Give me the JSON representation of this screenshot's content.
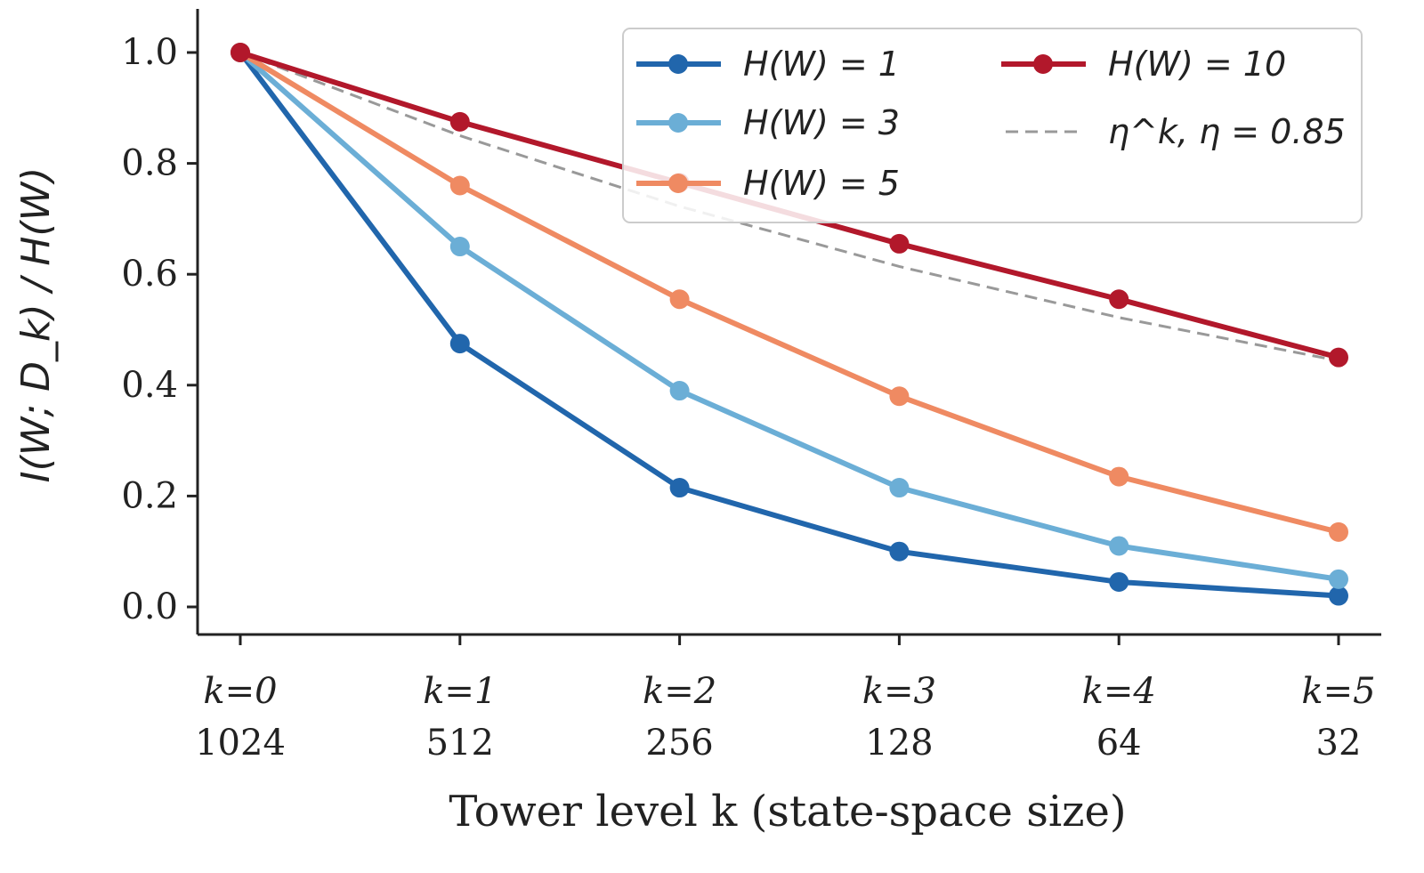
{
  "chart_data": {
    "type": "line",
    "title": "",
    "xlabel": "Tower level k  (state-space size)",
    "ylabel": "I(W; D_k) / H(W)",
    "x": [
      0,
      1,
      2,
      3,
      4,
      5
    ],
    "x_tick_labels": [
      [
        "k=0",
        "1024"
      ],
      [
        "k=1",
        "512"
      ],
      [
        "k=2",
        "256"
      ],
      [
        "k=3",
        "128"
      ],
      [
        "k=4",
        "64"
      ],
      [
        "k=5",
        "32"
      ]
    ],
    "y_ticks": [
      "0.0",
      "0.2",
      "0.4",
      "0.6",
      "0.8",
      "1.0"
    ],
    "ylim": [
      -0.05,
      1.08
    ],
    "grid": false,
    "legend_placement": "top-right",
    "series": [
      {
        "name": "H(W) = 1",
        "color": "#2166ac",
        "values": [
          1.0,
          0.475,
          0.215,
          0.1,
          0.045,
          0.02
        ],
        "style": "solid-markers"
      },
      {
        "name": "H(W) = 3",
        "color": "#6baed6",
        "values": [
          1.0,
          0.65,
          0.39,
          0.215,
          0.11,
          0.05
        ],
        "style": "solid-markers"
      },
      {
        "name": "H(W) = 5",
        "color": "#ef8a62",
        "values": [
          1.0,
          0.76,
          0.555,
          0.38,
          0.235,
          0.135
        ],
        "style": "solid-markers"
      },
      {
        "name": "H(W) = 10",
        "color": "#b2182b",
        "values": [
          1.0,
          0.875,
          0.765,
          0.655,
          0.555,
          0.45
        ],
        "style": "solid-markers"
      },
      {
        "name": "η^k,  η = 0.85",
        "color": "#999999",
        "values": [
          1.0,
          0.85,
          0.7225,
          0.614,
          0.522,
          0.444
        ],
        "style": "dashed"
      }
    ]
  }
}
